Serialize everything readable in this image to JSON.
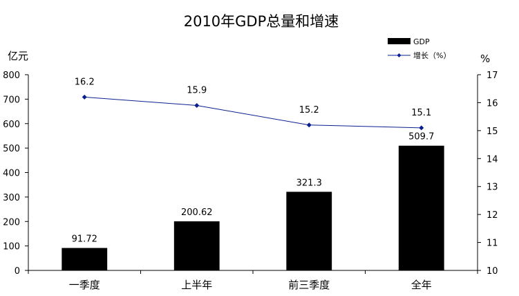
{
  "chart_data": {
    "type": "bar+line",
    "title": "2010年GDP总量和增速",
    "categories": [
      "一季度",
      "上半年",
      "前三季度",
      "全年"
    ],
    "y_left": {
      "label": "亿元",
      "min": 0,
      "max": 800,
      "step": 100
    },
    "y_right": {
      "label": "%",
      "min": 10,
      "max": 17,
      "step": 1
    },
    "series": [
      {
        "name": "GDP",
        "type": "bar",
        "axis": "left",
        "values": [
          91.72,
          200.62,
          321.3,
          509.7
        ],
        "labels": [
          "91.72",
          "200.62",
          "321.3",
          "509.7"
        ],
        "color": "#000000"
      },
      {
        "name": "增长（%）",
        "type": "line",
        "axis": "right",
        "values": [
          16.2,
          15.9,
          15.2,
          15.1
        ],
        "labels": [
          "16.2",
          "15.9",
          "15.2",
          "15.1"
        ],
        "color": "#0a1f8f"
      }
    ],
    "legend_position": "top-right",
    "grid": false
  }
}
